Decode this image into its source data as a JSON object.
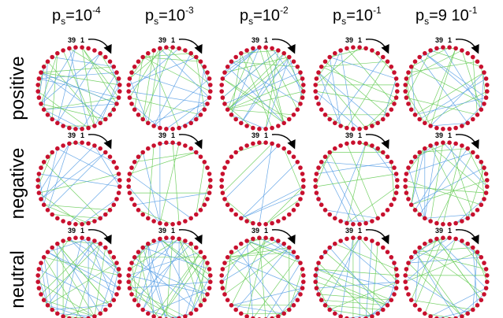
{
  "columns": [
    {
      "base": "p",
      "sub": "s",
      "eq": "=10",
      "exp": "-4"
    },
    {
      "base": "p",
      "sub": "s",
      "eq": "=10",
      "exp": "-3"
    },
    {
      "base": "p",
      "sub": "s",
      "eq": "=10",
      "exp": "-2"
    },
    {
      "base": "p",
      "sub": "s",
      "eq": "=10",
      "exp": "-1"
    },
    {
      "base": "p",
      "sub": "s",
      "eq": "=9 10",
      "exp": "-1"
    }
  ],
  "rows": [
    "positive",
    "negative",
    "neutral"
  ],
  "node_labels": {
    "left": "39",
    "right": "1"
  },
  "node_count": 40,
  "colors": {
    "node": "#c8102e",
    "edge_green": "#66cc55",
    "edge_blue": "#5aa0e6"
  }
}
